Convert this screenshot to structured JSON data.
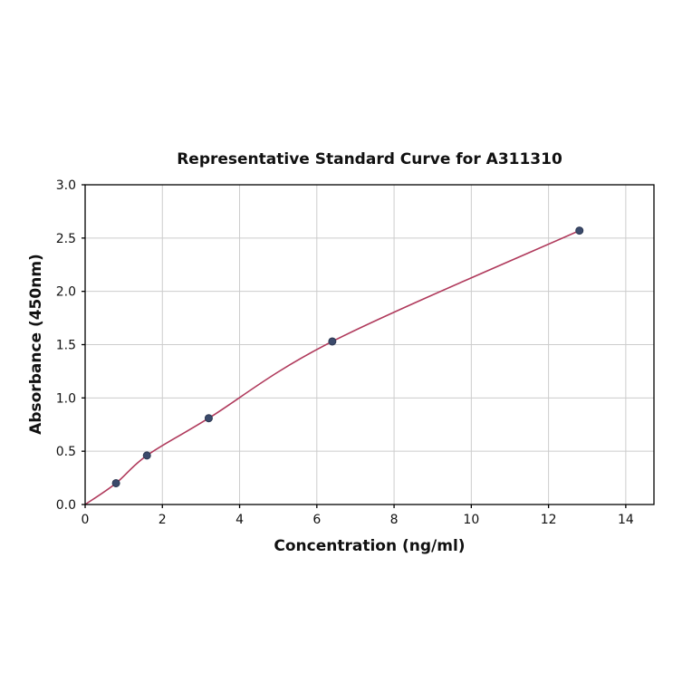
{
  "chart_data": {
    "type": "line",
    "title": "Representative Standard Curve for A311310",
    "xlabel": "Concentration (ng/ml)",
    "ylabel": "Absorbance (450nm)",
    "xlim": [
      0,
      14.73
    ],
    "ylim": [
      0,
      3.0
    ],
    "x_ticks": [
      0,
      2,
      4,
      6,
      8,
      10,
      12,
      14
    ],
    "y_ticks": [
      0.0,
      0.5,
      1.0,
      1.5,
      2.0,
      2.5,
      3.0
    ],
    "grid": true,
    "legend": "none",
    "curve_start": [
      0,
      0
    ],
    "series": [
      {
        "name": "standard-curve",
        "x": [
          0.8,
          1.6,
          3.2,
          6.4,
          12.8
        ],
        "y": [
          0.2,
          0.46,
          0.81,
          1.53,
          2.57
        ]
      }
    ],
    "colors": {
      "line": "#b03a5c",
      "marker_fill": "#3b4a6b",
      "marker_edge": "#2c3852",
      "grid": "#cccccc",
      "axis": "#000000"
    }
  }
}
